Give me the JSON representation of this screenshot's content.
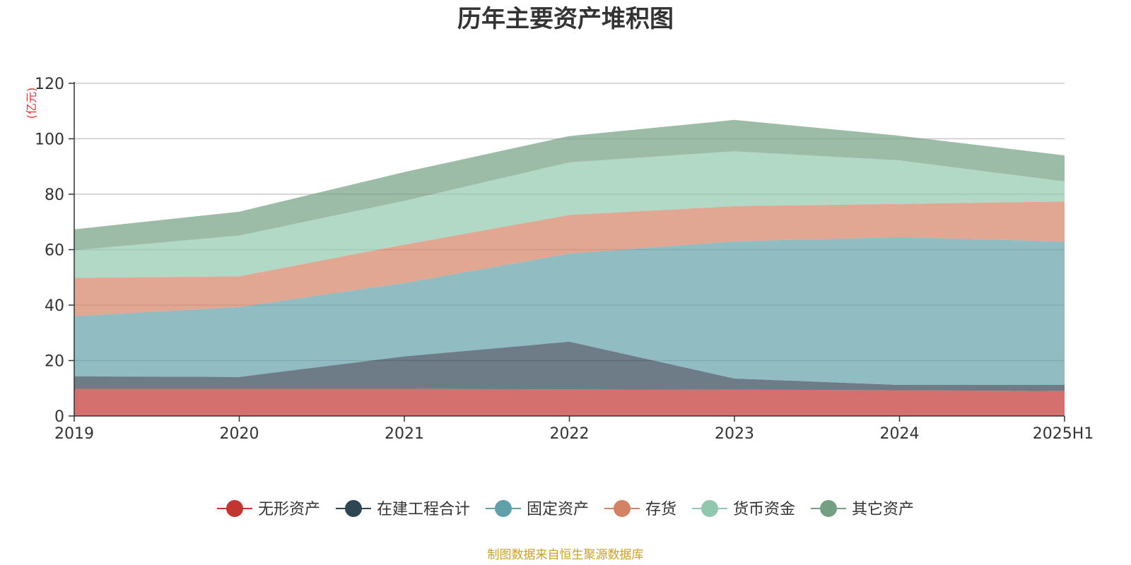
{
  "chart_data": {
    "type": "area",
    "stacked": true,
    "title": "历年主要资产堆积图",
    "y_unit": "(亿元)",
    "x": [
      "2019",
      "2020",
      "2021",
      "2022",
      "2023",
      "2024",
      "2025H1"
    ],
    "ylim": [
      0,
      120
    ],
    "yticks": [
      0,
      20,
      40,
      60,
      80,
      100,
      120
    ],
    "grid": true,
    "legend_position": "bottom",
    "series": [
      {
        "name": "无形资产",
        "color": "#c23531",
        "values": [
          9.8,
          9.8,
          9.8,
          9.6,
          9.5,
          9.3,
          9.0
        ]
      },
      {
        "name": "在建工程合计",
        "color": "#2f4554",
        "values": [
          4.5,
          4.3,
          11.7,
          17.2,
          4.0,
          1.9,
          2.2
        ]
      },
      {
        "name": "固定资产",
        "color": "#61a0a8",
        "values": [
          21.7,
          25.2,
          26.5,
          31.8,
          49.5,
          53.3,
          51.7
        ]
      },
      {
        "name": "存货",
        "color": "#d48265",
        "values": [
          13.8,
          11.1,
          13.8,
          13.9,
          12.7,
          12.0,
          14.5
        ]
      },
      {
        "name": "货币资金",
        "color": "#91c7ae",
        "values": [
          10.0,
          14.7,
          15.8,
          19.0,
          19.8,
          15.7,
          7.2
        ]
      },
      {
        "name": "其它资产",
        "color": "#749f83",
        "values": [
          7.5,
          8.6,
          10.4,
          9.5,
          11.3,
          8.9,
          9.4
        ]
      }
    ]
  },
  "footer": {
    "source": "制图数据来自恒生聚源数据库"
  }
}
